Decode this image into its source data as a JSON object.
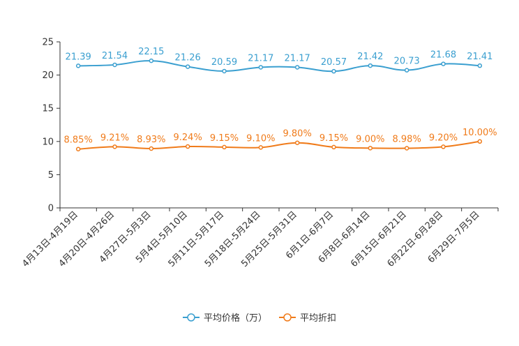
{
  "chart_data": {
    "type": "line",
    "title": "",
    "xlabel": "",
    "ylabel": "",
    "ylim": [
      0,
      25
    ],
    "yticks": [
      "0",
      "5",
      "10",
      "15",
      "20",
      "25"
    ],
    "grid": false,
    "legend_position": "bottom-center",
    "categories": [
      "4月13日-4月19日",
      "4月20日-4月26日",
      "4月27日-5月3日",
      "5月4日-5月10日",
      "5月11日-5月17日",
      "5月18日-5月24日",
      "5月25日-5月31日",
      "6月1日-6月7日",
      "6月8日-6月14日",
      "6月15日-6月21日",
      "6月22日-6月28日",
      "6月29日-7月5日"
    ],
    "series": [
      {
        "name": "平均价格（万）",
        "color": "#3a9fd0",
        "values": [
          21.39,
          21.54,
          22.15,
          21.26,
          20.59,
          21.17,
          21.17,
          20.57,
          21.42,
          20.73,
          21.68,
          21.41
        ],
        "labels": [
          "21.39",
          "21.54",
          "22.15",
          "21.26",
          "20.59",
          "21.17",
          "21.17",
          "20.57",
          "21.42",
          "20.73",
          "21.68",
          "21.41"
        ]
      },
      {
        "name": "平均折扣",
        "color": "#f07b1a",
        "values": [
          8.85,
          9.21,
          8.93,
          9.24,
          9.15,
          9.1,
          9.8,
          9.15,
          9.0,
          8.98,
          9.2,
          10.0
        ],
        "labels": [
          "8.85%",
          "9.21%",
          "8.93%",
          "9.24%",
          "9.15%",
          "9.10%",
          "9.80%",
          "9.15%",
          "9.00%",
          "8.98%",
          "9.20%",
          "10.00%"
        ]
      }
    ]
  }
}
